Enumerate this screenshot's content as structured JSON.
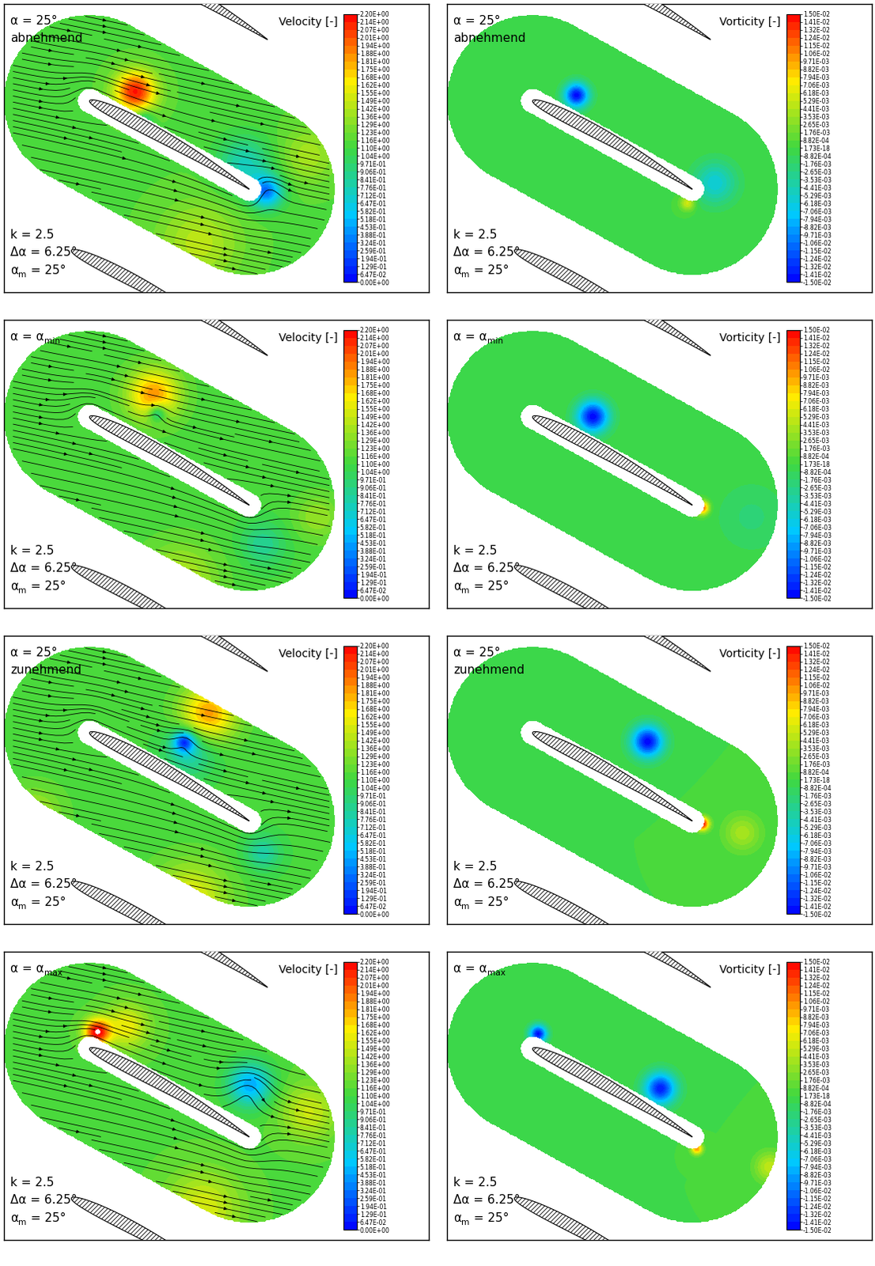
{
  "geometry": {
    "chord_angle_deg": -29,
    "pitch": [
      0.1,
      0.82
    ],
    "thickness": 0.07,
    "camber": 0.02,
    "outer_radius": 0.47,
    "inner_radius": 0.065,
    "inflow_angle_deg": -12
  },
  "colorbars": [
    {
      "label": "Velocity [-]",
      "range": [
        0,
        2.2
      ],
      "ticks": [
        {
          "value": 0.0,
          "label": "0.00E+00"
        },
        {
          "value": 0.0647,
          "label": "6.47E-02"
        },
        {
          "value": 0.129,
          "label": "1.29E-01"
        },
        {
          "value": 0.194,
          "label": "1.94E-01"
        },
        {
          "value": 0.259,
          "label": "2.59E-01"
        },
        {
          "value": 0.324,
          "label": "3.24E-01"
        },
        {
          "value": 0.388,
          "label": "3.88E-01"
        },
        {
          "value": 0.453,
          "label": "4.53E-01"
        },
        {
          "value": 0.518,
          "label": "5.18E-01"
        },
        {
          "value": 0.582,
          "label": "5.82E-01"
        },
        {
          "value": 0.647,
          "label": "6.47E-01"
        },
        {
          "value": 0.712,
          "label": "7.12E-01"
        },
        {
          "value": 0.776,
          "label": "7.76E-01"
        },
        {
          "value": 0.841,
          "label": "8.41E-01"
        },
        {
          "value": 0.906,
          "label": "9.06E-01"
        },
        {
          "value": 0.971,
          "label": "9.71E-01"
        },
        {
          "value": 1.04,
          "label": "1.04E+00"
        },
        {
          "value": 1.1,
          "label": "1.10E+00"
        },
        {
          "value": 1.16,
          "label": "1.16E+00"
        },
        {
          "value": 1.23,
          "label": "1.23E+00"
        },
        {
          "value": 1.29,
          "label": "1.29E+00"
        },
        {
          "value": 1.36,
          "label": "1.36E+00"
        },
        {
          "value": 1.42,
          "label": "1.42E+00"
        },
        {
          "value": 1.49,
          "label": "1.49E+00"
        },
        {
          "value": 1.55,
          "label": "1.55E+00"
        },
        {
          "value": 1.62,
          "label": "1.62E+00"
        },
        {
          "value": 1.68,
          "label": "1.68E+00"
        },
        {
          "value": 1.75,
          "label": "1.75E+00"
        },
        {
          "value": 1.81,
          "label": "1.81E+00"
        },
        {
          "value": 1.88,
          "label": "1.88E+00"
        },
        {
          "value": 1.94,
          "label": "1.94E+00"
        },
        {
          "value": 2.01,
          "label": "2.01E+00"
        },
        {
          "value": 2.07,
          "label": "2.07E+00"
        },
        {
          "value": 2.14,
          "label": "2.14E+00"
        },
        {
          "value": 2.2,
          "label": "2.20E+00"
        }
      ]
    },
    {
      "label": "Vorticity [-]",
      "range": [
        -0.015,
        0.015
      ],
      "ticks": [
        {
          "value": -0.015,
          "label": "-1.50E-02"
        },
        {
          "value": -0.0141,
          "label": "-1.41E-02"
        },
        {
          "value": -0.0132,
          "label": "-1.32E-02"
        },
        {
          "value": -0.0124,
          "label": "-1.24E-02"
        },
        {
          "value": -0.0115,
          "label": "-1.15E-02"
        },
        {
          "value": -0.0106,
          "label": "-1.06E-02"
        },
        {
          "value": -0.00971,
          "label": "-9.71E-03"
        },
        {
          "value": -0.00882,
          "label": "-8.82E-03"
        },
        {
          "value": -0.00794,
          "label": "-7.94E-03"
        },
        {
          "value": -0.00706,
          "label": "-7.06E-03"
        },
        {
          "value": -0.00618,
          "label": "-6.18E-03"
        },
        {
          "value": -0.00529,
          "label": "-5.29E-03"
        },
        {
          "value": -0.00441,
          "label": "-4.41E-03"
        },
        {
          "value": -0.00353,
          "label": "-3.53E-03"
        },
        {
          "value": -0.00265,
          "label": "-2.65E-03"
        },
        {
          "value": -0.00176,
          "label": "-1.76E-03"
        },
        {
          "value": -0.000882,
          "label": "-8.82E-04"
        },
        {
          "value": 1.73e-18,
          "label": "1.73E-18"
        },
        {
          "value": 0.000882,
          "label": "8.82E-04"
        },
        {
          "value": 0.00176,
          "label": "1.76E-03"
        },
        {
          "value": 0.00265,
          "label": "2.65E-03"
        },
        {
          "value": 0.00353,
          "label": "3.53E-03"
        },
        {
          "value": 0.00441,
          "label": "4.41E-03"
        },
        {
          "value": 0.00529,
          "label": "5.29E-03"
        },
        {
          "value": 0.00618,
          "label": "6.18E-03"
        },
        {
          "value": 0.00706,
          "label": "7.06E-03"
        },
        {
          "value": 0.00794,
          "label": "7.94E-03"
        },
        {
          "value": 0.00882,
          "label": "8.82E-03"
        },
        {
          "value": 0.00971,
          "label": "9.71E-03"
        },
        {
          "value": 0.0106,
          "label": "1.06E-02"
        },
        {
          "value": 0.0115,
          "label": "1.15E-02"
        },
        {
          "value": 0.0124,
          "label": "1.24E-02"
        },
        {
          "value": 0.0132,
          "label": "1.32E-02"
        },
        {
          "value": 0.0141,
          "label": "1.41E-02"
        },
        {
          "value": 0.015,
          "label": "1.50E-02"
        }
      ]
    }
  ],
  "chart_data": [
    {
      "type": "contour",
      "colorbar": "Velocity [-]",
      "streamlines": true,
      "tick_labels": false,
      "xlim": [
        -0.47,
        1.86
      ],
      "ylim": [
        -1.05,
        0.53
      ],
      "state": [
        {
          "text": "α = 25°"
        },
        {
          "text": "abnehmend"
        }
      ],
      "parameters": [
        {
          "text": "k = 2.5"
        },
        {
          "text": "Δα = 6.25°"
        },
        {
          "text": "α",
          "sub": "m",
          "rest": " = 25°"
        }
      ],
      "background": 1.15,
      "features": [
        {
          "x": 0.25,
          "y": 0.05,
          "value": 2.15,
          "radius": 0.11
        },
        {
          "x": 0.97,
          "y": -0.5,
          "value": 0.35,
          "radius": 0.09
        },
        {
          "x": 0.85,
          "y": -0.35,
          "value": 0.75,
          "radius": 0.15
        },
        {
          "x": 0.3,
          "y": -0.1,
          "value": 0.8,
          "radius": 0.05
        },
        {
          "x": 0.6,
          "y": -0.78,
          "value": 1.45,
          "radius": 0.22
        },
        {
          "x": 1.2,
          "y": -0.3,
          "value": 1.4,
          "radius": 0.15
        }
      ]
    },
    {
      "type": "contour",
      "colorbar": "Vorticity [-]",
      "streamlines": false,
      "tick_labels": false,
      "xlim": [
        -0.47,
        1.86
      ],
      "ylim": [
        -1.05,
        0.53
      ],
      "state": [
        {
          "text": "α = 25°"
        },
        {
          "text": "abnehmend"
        }
      ],
      "parameters": [
        {
          "text": "k = 2.5"
        },
        {
          "text": "Δα = 6.25°"
        },
        {
          "text": "α",
          "sub": "m",
          "rest": " = 25°"
        }
      ],
      "background": 0,
      "features": [
        {
          "x": 0.24,
          "y": 0.03,
          "value": -0.0148,
          "radius": 0.07
        },
        {
          "x": 1.0,
          "y": -0.45,
          "value": -0.006,
          "radius": 0.12
        },
        {
          "x": 0.85,
          "y": -0.56,
          "value": 0.006,
          "radius": 0.04
        }
      ]
    },
    {
      "type": "contour",
      "colorbar": "Velocity [-]",
      "streamlines": true,
      "tick_labels": false,
      "xlim": [
        -0.47,
        1.86
      ],
      "ylim": [
        -1.05,
        0.53
      ],
      "state": [
        {
          "text": "α = α",
          "sub": "min"
        }
      ],
      "parameters": [
        {
          "text": "k = 2.5"
        },
        {
          "text": "Δα = 6.25°"
        },
        {
          "text": "α",
          "sub": "m",
          "rest": " = 25°"
        }
      ],
      "background": 1.12,
      "features": [
        {
          "x": 0.35,
          "y": 0.12,
          "value": 1.85,
          "radius": 0.14
        },
        {
          "x": 0.37,
          "y": 0.02,
          "value": 0.55,
          "radius": 0.05
        },
        {
          "x": 0.95,
          "y": -0.7,
          "value": 0.85,
          "radius": 0.12
        },
        {
          "x": 0.5,
          "y": -0.9,
          "value": 1.45,
          "radius": 0.2
        },
        {
          "x": 1.25,
          "y": -0.55,
          "value": 1.35,
          "radius": 0.12
        }
      ]
    },
    {
      "type": "contour",
      "colorbar": "Vorticity [-]",
      "streamlines": false,
      "tick_labels": false,
      "xlim": [
        -0.47,
        1.86
      ],
      "ylim": [
        -1.05,
        0.53
      ],
      "state": [
        {
          "text": "α = α",
          "sub": "min"
        }
      ],
      "parameters": [
        {
          "text": "k = 2.5"
        },
        {
          "text": "Δα = 6.25°"
        },
        {
          "text": "α",
          "sub": "m",
          "rest": " = 25°"
        }
      ],
      "background": 0,
      "features": [
        {
          "x": 0.33,
          "y": 0.0,
          "value": -0.0148,
          "radius": 0.09
        },
        {
          "x": 0.93,
          "y": -0.5,
          "value": 0.012,
          "radius": 0.035
        },
        {
          "x": 1.2,
          "y": -0.55,
          "value": -0.002,
          "radius": 0.2
        }
      ]
    },
    {
      "type": "contour",
      "colorbar": "Velocity [-]",
      "streamlines": true,
      "tick_labels": false,
      "xlim": [
        -0.47,
        1.86
      ],
      "ylim": [
        -1.05,
        0.53
      ],
      "state": [
        {
          "text": "α = 25°"
        },
        {
          "text": "zunehmend"
        }
      ],
      "parameters": [
        {
          "text": "k = 2.5"
        },
        {
          "text": "Δα = 6.25°"
        },
        {
          "text": "α",
          "sub": "m",
          "rest": " = 25°"
        }
      ],
      "background": 1.12,
      "features": [
        {
          "x": 0.65,
          "y": 0.1,
          "value": 1.85,
          "radius": 0.15
        },
        {
          "x": 0.52,
          "y": -0.05,
          "value": 0.3,
          "radius": 0.06
        },
        {
          "x": 0.55,
          "y": -0.1,
          "value": 0.75,
          "radius": 0.14
        },
        {
          "x": 0.95,
          "y": -0.66,
          "value": 0.8,
          "radius": 0.1
        },
        {
          "x": 0.55,
          "y": -0.92,
          "value": 1.6,
          "radius": 0.2
        },
        {
          "x": -0.3,
          "y": -0.45,
          "value": 1.4,
          "radius": 0.15
        }
      ]
    },
    {
      "type": "contour",
      "colorbar": "Vorticity [-]",
      "streamlines": false,
      "tick_labels": false,
      "xlim": [
        -0.47,
        1.86
      ],
      "ylim": [
        -1.05,
        0.53
      ],
      "state": [
        {
          "text": "α = 25°"
        },
        {
          "text": "zunehmend"
        }
      ],
      "parameters": [
        {
          "text": "k = 2.5"
        },
        {
          "text": "Δα = 6.25°"
        },
        {
          "text": "α",
          "sub": "m",
          "rest": " = 25°"
        }
      ],
      "background": 0,
      "features": [
        {
          "x": 0.63,
          "y": -0.05,
          "value": -0.0148,
          "radius": 0.09
        },
        {
          "x": 0.93,
          "y": -0.5,
          "value": 0.0148,
          "radius": 0.035
        },
        {
          "x": 1.15,
          "y": -0.55,
          "value": 0.004,
          "radius": 0.1
        }
      ]
    },
    {
      "type": "contour",
      "colorbar": "Velocity [-]",
      "streamlines": true,
      "tick_labels": false,
      "xlim": [
        -0.47,
        1.86
      ],
      "ylim": [
        -1.05,
        0.53
      ],
      "state": [
        {
          "text": "α = α",
          "sub": "max"
        }
      ],
      "parameters": [
        {
          "text": "k = 2.5"
        },
        {
          "text": "Δα = 6.25°"
        },
        {
          "text": "α",
          "sub": "m",
          "rest": " = 25°"
        }
      ],
      "background": 1.15,
      "features": [
        {
          "x": 0.04,
          "y": 0.09,
          "value": 2.18,
          "radius": 0.07
        },
        {
          "x": 0.2,
          "y": 0.12,
          "value": 1.6,
          "radius": 0.12
        },
        {
          "x": 0.88,
          "y": -0.2,
          "value": 0.45,
          "radius": 0.12
        },
        {
          "x": 0.62,
          "y": -0.88,
          "value": 1.55,
          "radius": 0.2
        },
        {
          "x": 1.2,
          "y": -0.35,
          "value": 1.5,
          "radius": 0.15
        }
      ]
    },
    {
      "type": "contour",
      "colorbar": "Vorticity [-]",
      "streamlines": false,
      "tick_labels": false,
      "xlim": [
        -0.47,
        1.86
      ],
      "ylim": [
        -1.05,
        0.53
      ],
      "state": [
        {
          "text": "α = α",
          "sub": "max"
        }
      ],
      "parameters": [
        {
          "text": "k = 2.5"
        },
        {
          "text": "Δα = 6.25°"
        },
        {
          "text": "α",
          "sub": "m",
          "rest": " = 25°"
        }
      ],
      "background": 0,
      "features": [
        {
          "x": 0.03,
          "y": 0.08,
          "value": -0.0148,
          "radius": 0.05
        },
        {
          "x": 0.7,
          "y": -0.22,
          "value": -0.014,
          "radius": 0.09
        },
        {
          "x": 0.9,
          "y": -0.55,
          "value": 0.01,
          "radius": 0.03
        },
        {
          "x": 1.3,
          "y": -0.65,
          "value": 0.005,
          "radius": 0.08
        }
      ]
    }
  ]
}
